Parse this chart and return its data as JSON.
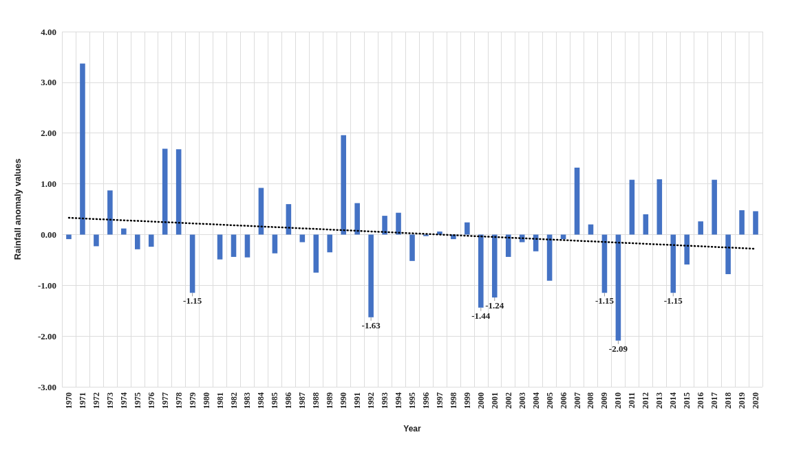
{
  "chart_data": {
    "type": "bar",
    "xlabel": "Year",
    "ylabel": "Rainfall anomaly values",
    "categories": [
      "1970",
      "1971",
      "1972",
      "1973",
      "1974",
      "1975",
      "1976",
      "1977",
      "1978",
      "1979",
      "1980",
      "1981",
      "1982",
      "1983",
      "1984",
      "1985",
      "1986",
      "1987",
      "1988",
      "1989",
      "1990",
      "1991",
      "1992",
      "1993",
      "1994",
      "1995",
      "1996",
      "1997",
      "1998",
      "1999",
      "2000",
      "2001",
      "2002",
      "2003",
      "2004",
      "2005",
      "2006",
      "2007",
      "2008",
      "2009",
      "2010",
      "2011",
      "2012",
      "2013",
      "2014",
      "2015",
      "2016",
      "2017",
      "2018",
      "2019",
      "2020"
    ],
    "series": [
      {
        "color": "#4472c4",
        "values": [
          -0.09,
          3.37,
          -0.23,
          0.87,
          0.12,
          -0.29,
          -0.24,
          1.69,
          1.68,
          -1.15,
          0,
          -0.49,
          -0.44,
          -0.45,
          0.92,
          -0.37,
          0.6,
          -0.15,
          -0.75,
          -0.35,
          1.96,
          0.62,
          -1.63,
          0.37,
          0.43,
          -0.52,
          -0.03,
          0.06,
          -0.09,
          0.24,
          -1.44,
          -1.24,
          -0.44,
          -0.15,
          -0.33,
          -0.91,
          -0.09,
          1.32,
          0.2,
          -1.15,
          -2.09,
          1.08,
          0.4,
          1.09,
          -1.15,
          -0.59,
          0.26,
          1.08,
          -0.78,
          0.48,
          0.46
        ],
        "value_labels": [
          null,
          null,
          null,
          null,
          null,
          null,
          null,
          null,
          null,
          "-1.15",
          null,
          null,
          null,
          null,
          null,
          null,
          null,
          null,
          null,
          null,
          null,
          null,
          "-1.63",
          null,
          null,
          null,
          null,
          null,
          null,
          null,
          "-1.44",
          "-1.24",
          null,
          null,
          null,
          null,
          null,
          null,
          null,
          "-1.15",
          "-2.09",
          null,
          null,
          null,
          "-1.15",
          null,
          null,
          null,
          null,
          null,
          null
        ]
      },
      {
        "type": "line",
        "color": "#000000",
        "line_style": "dotted",
        "marker": "none",
        "values": [
          0.33,
          null,
          null,
          null,
          null,
          null,
          null,
          null,
          null,
          null,
          null,
          null,
          null,
          null,
          null,
          null,
          null,
          null,
          null,
          null,
          null,
          null,
          null,
          null,
          null,
          null,
          null,
          null,
          null,
          null,
          null,
          null,
          null,
          null,
          null,
          null,
          null,
          null,
          null,
          null,
          null,
          null,
          null,
          null,
          null,
          null,
          null,
          null,
          null,
          null,
          -0.28
        ]
      }
    ],
    "ylim": [
      -3,
      4
    ],
    "yticks": [
      {
        "value": -3,
        "label": "-3.00"
      },
      {
        "value": -2,
        "label": "-2.00"
      },
      {
        "value": -1,
        "label": "-1.00"
      },
      {
        "value": 0,
        "label": "0.00"
      },
      {
        "value": 1,
        "label": "1.00"
      },
      {
        "value": 2,
        "label": "2.00"
      },
      {
        "value": 3,
        "label": "3.00"
      },
      {
        "value": 4,
        "label": "4.00"
      }
    ],
    "grid": true
  }
}
